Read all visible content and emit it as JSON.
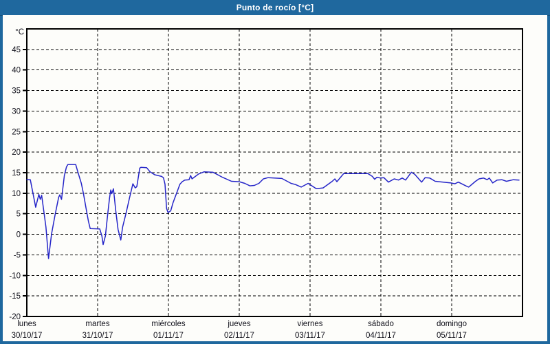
{
  "header": {
    "title": "Punto de rocío [°C]"
  },
  "colors": {
    "frame": "#1f689e",
    "title_text": "#ffffff",
    "panel": "#fdfdfa",
    "grid": "#000000",
    "axis": "#000000",
    "label": "#10101a",
    "line": "#2424c8"
  },
  "chart_data": {
    "type": "line",
    "title": "Punto de rocío [°C]",
    "ylabel": "°C",
    "xlabel": "",
    "ylim": [
      -20,
      50
    ],
    "y_ticks": [
      45,
      40,
      35,
      30,
      25,
      20,
      15,
      10,
      5,
      0,
      -5,
      -10,
      -15,
      -20
    ],
    "grid": "dashed",
    "legend_position": "none",
    "x_range_days": 7,
    "x_days": [
      {
        "name": "lunes",
        "date": "30/10/17"
      },
      {
        "name": "martes",
        "date": "31/10/17"
      },
      {
        "name": "miércoles",
        "date": "01/11/17"
      },
      {
        "name": "jueves",
        "date": "02/11/17"
      },
      {
        "name": "viernes",
        "date": "03/11/17"
      },
      {
        "name": "sábado",
        "date": "04/11/17"
      },
      {
        "name": "domingo",
        "date": "05/11/17"
      }
    ],
    "series": [
      {
        "name": "Punto de rocío",
        "color": "#2424c8",
        "points": [
          [
            0.0,
            13.3
          ],
          [
            0.05,
            13.3
          ],
          [
            0.125,
            6.6
          ],
          [
            0.17,
            9.7
          ],
          [
            0.19,
            8.5
          ],
          [
            0.21,
            9.5
          ],
          [
            0.27,
            1.8
          ],
          [
            0.307,
            -5.9
          ],
          [
            0.35,
            0.1
          ],
          [
            0.4,
            4.8
          ],
          [
            0.45,
            9.0
          ],
          [
            0.466,
            9.6
          ],
          [
            0.49,
            8.5
          ],
          [
            0.53,
            14.3
          ],
          [
            0.56,
            16.4
          ],
          [
            0.58,
            17.0
          ],
          [
            0.69,
            17.0
          ],
          [
            0.72,
            15.2
          ],
          [
            0.77,
            12.4
          ],
          [
            0.8,
            9.9
          ],
          [
            0.835,
            6.5
          ],
          [
            0.87,
            3.2
          ],
          [
            0.895,
            1.4
          ],
          [
            1.03,
            1.3
          ],
          [
            1.06,
            -0.4
          ],
          [
            1.078,
            -2.5
          ],
          [
            1.11,
            -0.4
          ],
          [
            1.14,
            4.5
          ],
          [
            1.168,
            8.8
          ],
          [
            1.185,
            10.8
          ],
          [
            1.2,
            9.9
          ],
          [
            1.223,
            11.1
          ],
          [
            1.256,
            5.7
          ],
          [
            1.288,
            1.2
          ],
          [
            1.327,
            -1.4
          ],
          [
            1.353,
            1.8
          ],
          [
            1.401,
            5.1
          ],
          [
            1.45,
            8.8
          ],
          [
            1.498,
            12.3
          ],
          [
            1.531,
            11.3
          ],
          [
            1.553,
            11.6
          ],
          [
            1.595,
            16.1
          ],
          [
            1.612,
            16.3
          ],
          [
            1.693,
            16.2
          ],
          [
            1.741,
            15.2
          ],
          [
            1.806,
            14.5
          ],
          [
            1.903,
            14.1
          ],
          [
            1.929,
            13.8
          ],
          [
            1.951,
            12.2
          ],
          [
            1.974,
            6.3
          ],
          [
            1.994,
            5.3
          ],
          [
            2.032,
            5.7
          ],
          [
            2.065,
            7.7
          ],
          [
            2.113,
            9.9
          ],
          [
            2.162,
            12.2
          ],
          [
            2.194,
            12.8
          ],
          [
            2.23,
            13.2
          ],
          [
            2.291,
            13.3
          ],
          [
            2.314,
            14.3
          ],
          [
            2.333,
            13.5
          ],
          [
            2.427,
            14.7
          ],
          [
            2.502,
            15.2
          ],
          [
            2.63,
            15.1
          ],
          [
            2.696,
            14.5
          ],
          [
            2.761,
            13.9
          ],
          [
            2.89,
            12.9
          ],
          [
            3.0,
            12.8
          ],
          [
            3.078,
            12.4
          ],
          [
            3.15,
            11.8
          ],
          [
            3.214,
            11.9
          ],
          [
            3.278,
            12.4
          ],
          [
            3.341,
            13.5
          ],
          [
            3.408,
            13.8
          ],
          [
            3.602,
            13.6
          ],
          [
            3.731,
            12.4
          ],
          [
            3.796,
            12.1
          ],
          [
            3.876,
            11.5
          ],
          [
            3.973,
            12.4
          ],
          [
            4.087,
            11.1
          ],
          [
            4.184,
            11.3
          ],
          [
            4.314,
            12.9
          ],
          [
            4.35,
            13.5
          ],
          [
            4.379,
            12.8
          ],
          [
            4.476,
            14.8
          ],
          [
            4.816,
            14.8
          ],
          [
            4.88,
            14.1
          ],
          [
            4.913,
            13.4
          ],
          [
            4.945,
            13.9
          ],
          [
            4.994,
            13.7
          ],
          [
            5.042,
            13.8
          ],
          [
            5.107,
            12.7
          ],
          [
            5.188,
            13.5
          ],
          [
            5.249,
            13.2
          ],
          [
            5.301,
            13.7
          ],
          [
            5.35,
            13.2
          ],
          [
            5.43,
            15.1
          ],
          [
            5.479,
            14.6
          ],
          [
            5.576,
            12.7
          ],
          [
            5.625,
            13.8
          ],
          [
            5.69,
            13.7
          ],
          [
            5.767,
            12.9
          ],
          [
            5.883,
            12.7
          ],
          [
            5.987,
            12.5
          ],
          [
            6.046,
            12.3
          ],
          [
            6.094,
            12.7
          ],
          [
            6.211,
            11.7
          ],
          [
            6.24,
            11.5
          ],
          [
            6.337,
            12.9
          ],
          [
            6.385,
            13.5
          ],
          [
            6.45,
            13.7
          ],
          [
            6.501,
            13.3
          ],
          [
            6.531,
            13.7
          ],
          [
            6.58,
            12.5
          ],
          [
            6.641,
            13.2
          ],
          [
            6.709,
            13.3
          ],
          [
            6.774,
            12.9
          ],
          [
            6.871,
            13.3
          ],
          [
            6.951,
            13.2
          ]
        ]
      }
    ]
  }
}
